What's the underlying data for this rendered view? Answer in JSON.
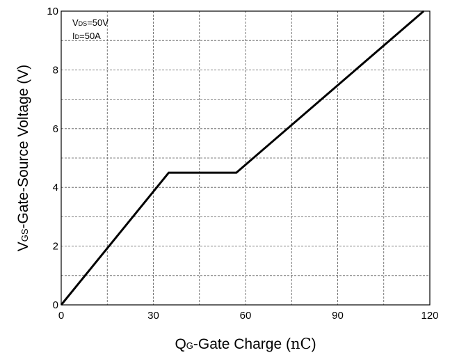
{
  "chart_data": {
    "type": "line",
    "xlabel": {
      "main": "Q",
      "sub": "G",
      "rest": "-Gate Charge (",
      "unit": "nC",
      "close": ")"
    },
    "ylabel": {
      "main": "V",
      "sub": "GS",
      "rest": "-Gate-Source Voltage (V)"
    },
    "xlim": [
      0,
      120
    ],
    "ylim": [
      0,
      10
    ],
    "x_ticks": [
      "0",
      "30",
      "60",
      "90",
      "120"
    ],
    "y_ticks": [
      "0",
      "2",
      "4",
      "6",
      "8",
      "10"
    ],
    "grid": true,
    "annotations": [
      {
        "main": "V",
        "sub": "DS",
        "rest": "=50V"
      },
      {
        "main": "I",
        "sub": "D",
        "rest": "=50A"
      }
    ],
    "series": [
      {
        "x": [
          0,
          35,
          57,
          118
        ],
        "y": [
          0,
          4.5,
          4.5,
          10
        ]
      }
    ],
    "line_color": "#000000"
  }
}
